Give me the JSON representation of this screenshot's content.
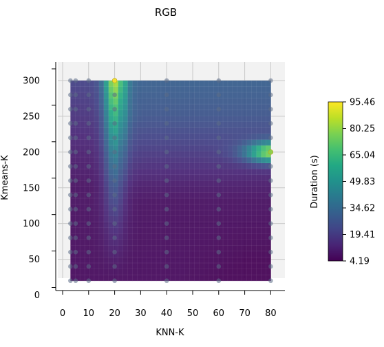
{
  "chart_data": {
    "type": "heatmap",
    "title": "RGB",
    "xlabel": "KNN-K",
    "ylabel": "Kmeans-K",
    "colorbar_label": "Duration (s)",
    "colormap": "viridis",
    "xlim": [
      -2,
      86
    ],
    "ylim": [
      0,
      320
    ],
    "x_ticks": [
      0,
      10,
      20,
      30,
      40,
      50,
      60,
      70,
      80
    ],
    "y_ticks": [
      0,
      50,
      100,
      150,
      200,
      250,
      300
    ],
    "colorbar_range": [
      4.19,
      95.46
    ],
    "colorbar_ticks": [
      "4.19",
      "19.41",
      "34.62",
      "49.83",
      "65.04",
      "80.25",
      "95.46"
    ],
    "grid": true,
    "sample_x": [
      3,
      5,
      10,
      20,
      40,
      60,
      80
    ],
    "sample_y": [
      20,
      40,
      60,
      80,
      100,
      120,
      140,
      160,
      180,
      200,
      220,
      240,
      260,
      280,
      300
    ],
    "surface_extent": {
      "x": [
        3,
        80
      ],
      "y": [
        20,
        300
      ]
    },
    "hotspots": [
      {
        "x": 20,
        "y": 300,
        "value": 95.46
      },
      {
        "x": 80,
        "y": 200,
        "value": 80.0
      }
    ]
  }
}
